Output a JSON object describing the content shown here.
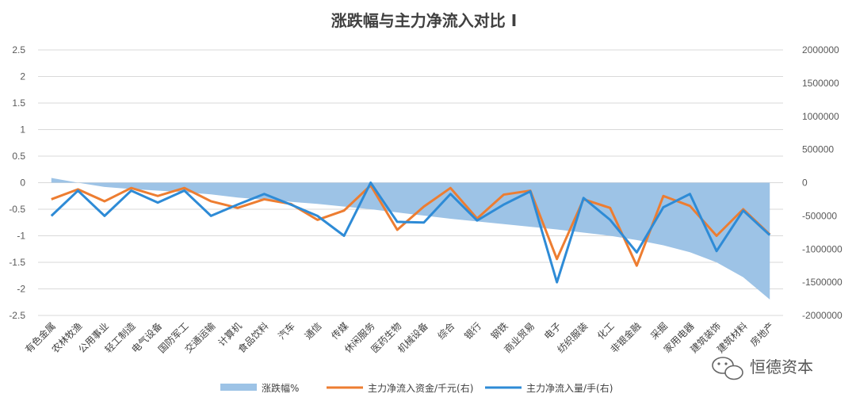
{
  "chart_data": {
    "type": "area+line",
    "title": "涨跌幅与主力净流入对比 I",
    "categories": [
      "有色金属",
      "农林牧渔",
      "公用事业",
      "轻工制造",
      "电气设备",
      "国防军工",
      "交通运输",
      "计算机",
      "食品饮料",
      "汽车",
      "通信",
      "传媒",
      "休闲服务",
      "医药生物",
      "机械设备",
      "综合",
      "银行",
      "钢铁",
      "商业贸易",
      "电子",
      "纺织服装",
      "化工",
      "非银金融",
      "采掘",
      "家用电器",
      "建筑装饰",
      "建筑材料",
      "房地产"
    ],
    "y_left": {
      "min": -2.5,
      "max": 2.5,
      "step": 0.5,
      "ticks": [
        "2.5",
        "2",
        "1.5",
        "1",
        "0.5",
        "0",
        "-0.5",
        "-1",
        "-1.5",
        "-2",
        "-2.5"
      ]
    },
    "y_right": {
      "min": -2000000,
      "max": 2000000,
      "step": 500000,
      "ticks": [
        "2000000",
        "1500000",
        "1000000",
        "500000",
        "0",
        "-500000",
        "-1000000",
        "-1500000",
        "-2000000"
      ]
    },
    "series": [
      {
        "name": "涨跌幅%",
        "kind": "area",
        "axis": "left",
        "color": "#9DC3E6",
        "values": [
          0.09,
          0.0,
          -0.08,
          -0.12,
          -0.15,
          -0.18,
          -0.22,
          -0.28,
          -0.32,
          -0.36,
          -0.4,
          -0.45,
          -0.5,
          -0.56,
          -0.62,
          -0.68,
          -0.73,
          -0.78,
          -0.83,
          -0.88,
          -0.94,
          -1.0,
          -1.08,
          -1.18,
          -1.31,
          -1.5,
          -1.78,
          -2.2
        ]
      },
      {
        "name": "主力净流入资金/千元(右)",
        "kind": "line",
        "axis": "right",
        "color": "#ED7D31",
        "values": [
          -250000,
          -100000,
          -280000,
          -80000,
          -200000,
          -80000,
          -280000,
          -380000,
          -250000,
          -320000,
          -560000,
          -420000,
          -40000,
          -710000,
          -360000,
          -80000,
          -540000,
          -180000,
          -120000,
          -1150000,
          -250000,
          -380000,
          -1250000,
          -200000,
          -350000,
          -800000,
          -400000,
          -780000
        ]
      },
      {
        "name": "主力净流入量/手(右)",
        "kind": "line",
        "axis": "right",
        "color": "#2E8BD6",
        "values": [
          -500000,
          -120000,
          -500000,
          -120000,
          -300000,
          -120000,
          -500000,
          -330000,
          -170000,
          -330000,
          -500000,
          -800000,
          0,
          -590000,
          -600000,
          -170000,
          -570000,
          -330000,
          -130000,
          -1500000,
          -230000,
          -560000,
          -1050000,
          -370000,
          -170000,
          -1030000,
          -420000,
          -790000
        ]
      }
    ],
    "legend_position": "bottom",
    "grid": true
  },
  "watermark": "恒德资本"
}
